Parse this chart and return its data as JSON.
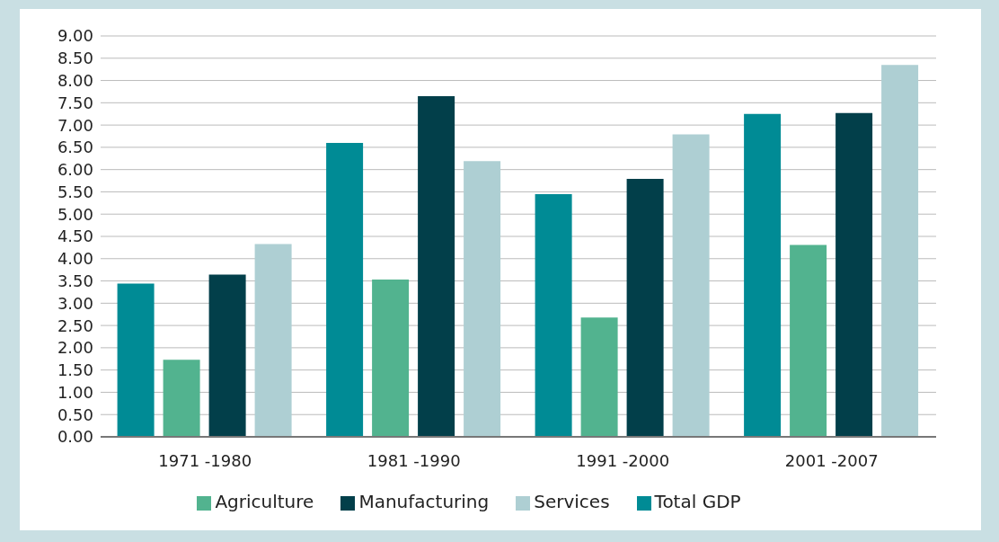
{
  "chart_data": {
    "type": "bar",
    "categories": [
      "1971 -1980",
      "1981 -1990",
      "1991 -2000",
      "2001 -2007"
    ],
    "series": [
      {
        "name": "Total GDP",
        "color": "#008b95",
        "values": [
          3.44,
          6.6,
          5.45,
          7.25
        ]
      },
      {
        "name": "Agriculture",
        "color": "#52b38f",
        "values": [
          1.73,
          3.53,
          2.68,
          4.31
        ]
      },
      {
        "name": "Manufacturing",
        "color": "#023f4a",
        "values": [
          3.64,
          7.65,
          5.79,
          7.27
        ]
      },
      {
        "name": "Services",
        "color": "#aecfd3",
        "values": [
          4.33,
          6.19,
          6.79,
          8.35
        ]
      }
    ],
    "ylim": [
      0,
      9
    ],
    "yticks": [
      {
        "value": 0,
        "label": "0.00"
      },
      {
        "value": 0.5,
        "label": "0.50"
      },
      {
        "value": 1,
        "label": "1.00"
      },
      {
        "value": 1.5,
        "label": "1.50"
      },
      {
        "value": 2,
        "label": "2.00"
      },
      {
        "value": 2.5,
        "label": "2.50"
      },
      {
        "value": 3,
        "label": "3.00"
      },
      {
        "value": 3.5,
        "label": "3.50"
      },
      {
        "value": 4,
        "label": "4.00"
      },
      {
        "value": 4.5,
        "label": "4.50"
      },
      {
        "value": 5,
        "label": "5.00"
      },
      {
        "value": 5.5,
        "label": "5.50"
      },
      {
        "value": 6,
        "label": "6.00"
      },
      {
        "value": 6.5,
        "label": "6.50"
      },
      {
        "value": 7,
        "label": "7.00"
      },
      {
        "value": 7.5,
        "label": "7.50"
      },
      {
        "value": 8,
        "label": "8.00"
      },
      {
        "value": 8.5,
        "label": "8.50"
      },
      {
        "value": 9,
        "label": "9.00"
      }
    ],
    "grid": "y",
    "legend": "bottom"
  }
}
